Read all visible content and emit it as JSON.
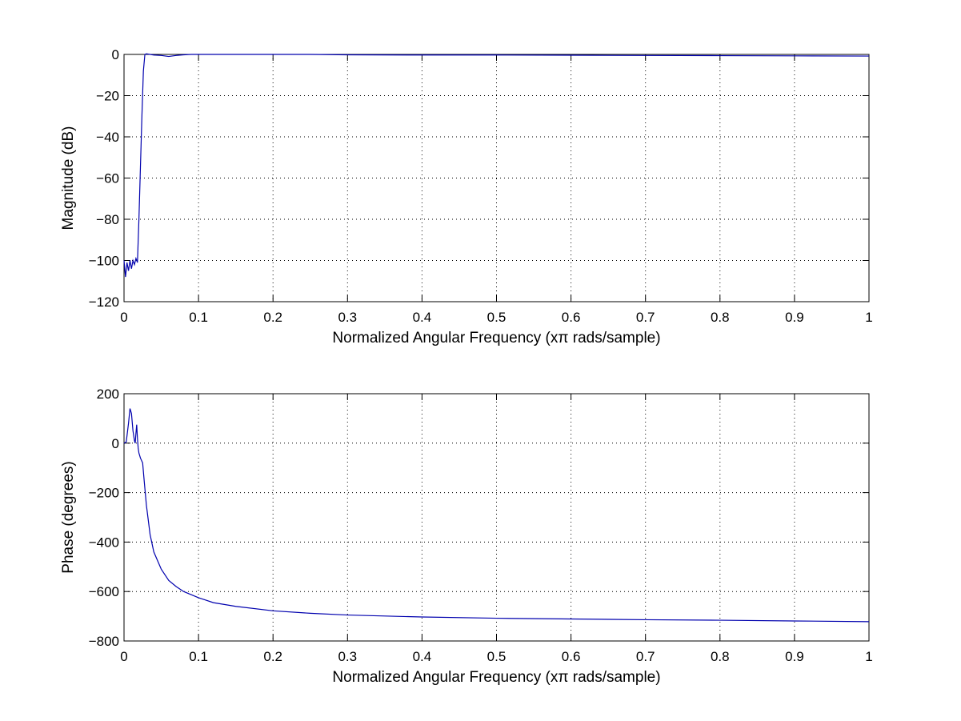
{
  "chart_data": [
    {
      "type": "line",
      "xlabel": "Normalized Angular Frequency  (xπ rads/sample)",
      "ylabel": "Magnitude (dB)",
      "xlim": [
        0,
        1
      ],
      "ylim": [
        -120,
        0
      ],
      "xticks": [
        0,
        0.1,
        0.2,
        0.3,
        0.4,
        0.5,
        0.6,
        0.7,
        0.8,
        0.9,
        1
      ],
      "xtick_labels": [
        "0",
        "0.1",
        "0.2",
        "0.3",
        "0.4",
        "0.5",
        "0.6",
        "0.7",
        "0.8",
        "0.9",
        "1"
      ],
      "yticks": [
        0,
        -20,
        -40,
        -60,
        -80,
        -100,
        -120
      ],
      "ytick_labels": [
        "0",
        "−20",
        "−40",
        "−60",
        "−80",
        "−100",
        "−120"
      ],
      "grid": true,
      "color": "#0000ae",
      "series": [
        {
          "x": [
            0,
            0.002,
            0.004,
            0.006,
            0.008,
            0.01,
            0.012,
            0.014,
            0.016,
            0.018,
            0.02,
            0.022,
            0.024,
            0.026,
            0.028,
            0.03,
            0.035,
            0.04,
            0.05,
            0.06,
            0.07,
            0.08,
            0.09,
            0.1,
            0.15,
            0.2,
            0.25,
            0.3,
            0.4,
            0.5,
            0.6,
            0.7,
            0.8,
            0.9,
            1.0
          ],
          "y": [
            -100,
            -108,
            -101,
            -105,
            -100,
            -104,
            -100,
            -102,
            -99,
            -101,
            -80,
            -55,
            -30,
            -8,
            0,
            0.3,
            0,
            -0.3,
            -0.5,
            -1.0,
            -0.5,
            -0.2,
            0,
            0,
            0,
            0,
            0,
            -0.2,
            -0.3,
            -0.3,
            -0.4,
            -0.5,
            -0.6,
            -0.7,
            -0.8
          ]
        }
      ]
    },
    {
      "type": "line",
      "xlabel": "Normalized Angular Frequency  (xπ rads/sample)",
      "ylabel": "Phase (degrees)",
      "xlim": [
        0,
        1
      ],
      "ylim": [
        -800,
        200
      ],
      "xticks": [
        0,
        0.1,
        0.2,
        0.3,
        0.4,
        0.5,
        0.6,
        0.7,
        0.8,
        0.9,
        1
      ],
      "xtick_labels": [
        "0",
        "0.1",
        "0.2",
        "0.3",
        "0.4",
        "0.5",
        "0.6",
        "0.7",
        "0.8",
        "0.9",
        "1"
      ],
      "yticks": [
        200,
        0,
        -200,
        -400,
        -600,
        -800
      ],
      "ytick_labels": [
        "200",
        "0",
        "−200",
        "−400",
        "−600",
        "−800"
      ],
      "grid": true,
      "color": "#0000ae",
      "series": [
        {
          "x": [
            0,
            0.003,
            0.006,
            0.008,
            0.01,
            0.012,
            0.014,
            0.015,
            0.016,
            0.017,
            0.018,
            0.019,
            0.02,
            0.022,
            0.025,
            0.027,
            0.03,
            0.035,
            0.04,
            0.05,
            0.06,
            0.07,
            0.08,
            0.1,
            0.12,
            0.15,
            0.2,
            0.25,
            0.3,
            0.4,
            0.5,
            0.6,
            0.7,
            0.8,
            0.9,
            1.0
          ],
          "y": [
            0,
            5,
            80,
            140,
            120,
            50,
            10,
            0,
            40,
            75,
            20,
            -20,
            -40,
            -60,
            -80,
            -150,
            -250,
            -370,
            -440,
            -510,
            -555,
            -580,
            -600,
            -625,
            -645,
            -660,
            -678,
            -688,
            -695,
            -703,
            -708,
            -711,
            -714,
            -716,
            -719,
            -722
          ]
        }
      ]
    }
  ]
}
